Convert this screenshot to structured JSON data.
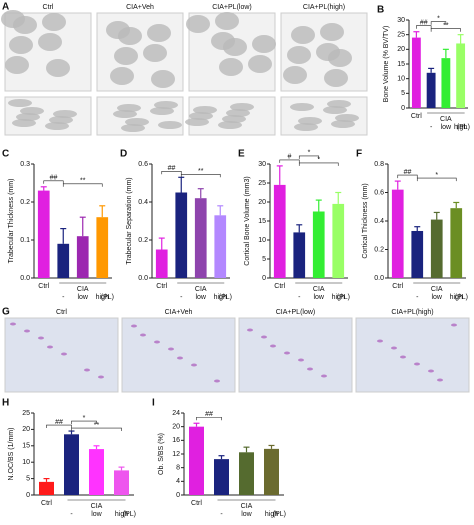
{
  "chart_data": [
    {
      "type": "bar",
      "panel": "B",
      "ylabel": "Bone Volume (% BV/TV)",
      "group_labels": [
        "Ctrl",
        "CIA"
      ],
      "categories": [
        null,
        "-",
        "low",
        "high"
      ],
      "unit_label": "(PL)",
      "values": [
        24,
        12,
        17,
        22
      ],
      "errors": [
        2,
        1.5,
        3,
        3
      ],
      "colors": [
        "#e020e0",
        "#1a237e",
        "#33ee33",
        "#99ff66"
      ],
      "ylim": [
        0,
        30
      ],
      "yticks": [
        0,
        5,
        10,
        15,
        20,
        25,
        30
      ],
      "annotations": [
        "##",
        "*",
        "**"
      ]
    },
    {
      "type": "bar",
      "panel": "C",
      "ylabel": "Trabecular Thickness (mm)",
      "group_labels": [
        "Ctrl",
        "CIA"
      ],
      "categories": [
        null,
        "-",
        "low",
        "high"
      ],
      "unit_label": "(PL)",
      "values": [
        0.23,
        0.09,
        0.11,
        0.16
      ],
      "errors": [
        0.01,
        0.04,
        0.05,
        0.03
      ],
      "colors": [
        "#e020e0",
        "#1a237e",
        "#9c27b0",
        "#ff9800"
      ],
      "ylim": [
        0,
        0.3
      ],
      "yticks": [
        {
          "value": 0,
          "label": "0.0"
        },
        0.1,
        0.2,
        0.3
      ],
      "annotations": [
        "##",
        "**"
      ]
    },
    {
      "type": "bar",
      "panel": "D",
      "ylabel": "Trabecular Separation (mm)",
      "group_labels": [
        "Ctrl",
        "CIA"
      ],
      "categories": [
        null,
        "-",
        "low",
        "high"
      ],
      "unit_label": "(PL)",
      "values": [
        0.15,
        0.45,
        0.42,
        0.33
      ],
      "errors": [
        0.06,
        0.08,
        0.05,
        0.05
      ],
      "colors": [
        "#e020e0",
        "#1a237e",
        "#8e44ad",
        "#b388ff"
      ],
      "ylim": [
        0,
        0.6
      ],
      "yticks": [
        {
          "value": 0,
          "label": "0.0"
        },
        0.2,
        0.4,
        0.6
      ],
      "annotations": [
        "##",
        "**"
      ]
    },
    {
      "type": "bar",
      "panel": "E",
      "ylabel": "Cortical Bone Volume (mm3)",
      "group_labels": [
        "Ctrl",
        "CIA"
      ],
      "categories": [
        null,
        "-",
        "low",
        "high"
      ],
      "unit_label": "(PL)",
      "values": [
        24.5,
        12,
        17.5,
        19.5
      ],
      "errors": [
        5,
        2,
        3,
        3
      ],
      "colors": [
        "#e020e0",
        "#1a237e",
        "#33ee33",
        "#99ff66"
      ],
      "ylim": [
        0,
        30
      ],
      "yticks": [
        0,
        5,
        10,
        15,
        20,
        25,
        30
      ],
      "annotations": [
        "#",
        "*",
        "*"
      ]
    },
    {
      "type": "bar",
      "panel": "F",
      "ylabel": "Cortical Thickness (mm)",
      "group_labels": [
        "Ctrl",
        "CIA"
      ],
      "categories": [
        null,
        "-",
        "low",
        "high"
      ],
      "unit_label": "(PL)",
      "values": [
        0.62,
        0.33,
        0.41,
        0.49
      ],
      "errors": [
        0.06,
        0.03,
        0.05,
        0.04
      ],
      "colors": [
        "#e020e0",
        "#1a237e",
        "#556b2f",
        "#6b8e23"
      ],
      "ylim": [
        0,
        0.8
      ],
      "yticks": [
        {
          "value": 0,
          "label": "0.0"
        },
        0.2,
        0.4,
        0.6,
        0.8
      ],
      "annotations": [
        "##",
        "*"
      ]
    },
    {
      "type": "bar",
      "panel": "H",
      "ylabel": "N.OC/BS (1/mm)",
      "group_labels": [
        "Ctrl",
        "CIA"
      ],
      "categories": [
        null,
        "-",
        "low",
        "high"
      ],
      "unit_label": "(PL)",
      "values": [
        4,
        18.5,
        14,
        7.5
      ],
      "errors": [
        1,
        1,
        1,
        1
      ],
      "colors": [
        "#ff1a1a",
        "#1a237e",
        "#ff33ff",
        "#ee55ee"
      ],
      "ylim": [
        0,
        25
      ],
      "yticks": [
        0,
        5,
        10,
        15,
        20,
        25
      ],
      "annotations": [
        "##",
        "*",
        "**"
      ]
    },
    {
      "type": "bar",
      "panel": "I",
      "ylabel": "Ob. S/BS (%)",
      "group_labels": [
        "Ctrl",
        "CIA"
      ],
      "categories": [
        null,
        "-",
        "low",
        "high"
      ],
      "unit_label": "(PL)",
      "values": [
        20,
        10.5,
        12.5,
        13.5
      ],
      "errors": [
        1,
        1,
        1.5,
        1
      ],
      "colors": [
        "#e020e0",
        "#1a237e",
        "#556b2f",
        "#6b6b2f"
      ],
      "ylim": [
        0,
        24
      ],
      "yticks": [
        0,
        4,
        8,
        12,
        16,
        20,
        24
      ],
      "annotations": [
        "##"
      ]
    }
  ],
  "images": [
    {
      "panel": "A",
      "labels": [
        "Ctrl",
        "CIA+Veh",
        "CIA+PL(low)",
        "CIA+PL(high)"
      ]
    },
    {
      "panel": "G",
      "labels": [
        "Ctrl",
        "CIA+Veh",
        "CIA+PL(low)",
        "CIA+PL(high)"
      ]
    }
  ]
}
